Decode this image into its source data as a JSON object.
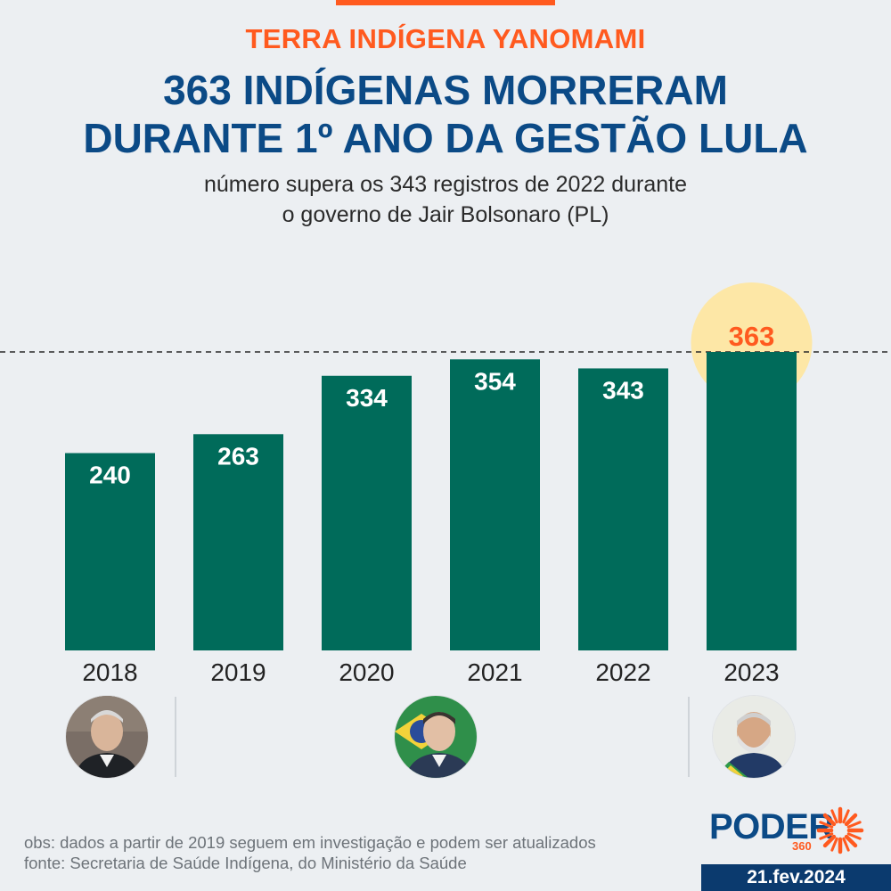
{
  "kicker": "TERRA INDÍGENA YANOMAMI",
  "headline_line1": "363 INDÍGENAS MORRERAM",
  "headline_line2": "DURANTE 1º ANO DA GESTÃO LULA",
  "subtitle_line1": "número supera os 343 registros de 2022 durante",
  "subtitle_line2": "o governo de Jair Bolsonaro (PL)",
  "colors": {
    "bar": "#006b5a",
    "accent": "#ff5a1f",
    "navy": "#0b4a86",
    "highlight": "#fde7a6"
  },
  "chart_data": {
    "type": "bar",
    "categories": [
      "2018",
      "2019",
      "2020",
      "2021",
      "2022",
      "2023"
    ],
    "values": [
      240,
      263,
      334,
      354,
      343,
      363
    ],
    "title": "363 INDÍGENAS MORRERAM DURANTE 1º ANO DA GESTÃO LULA",
    "xlabel": "",
    "ylabel": "",
    "ylim": [
      0,
      363
    ],
    "highlight_index": 5,
    "reference_line": 363,
    "grid": false,
    "legend": "none"
  },
  "presidents": [
    {
      "name": "temer-avatar",
      "icon": "president-portrait"
    },
    {
      "name": "bolsonaro-avatar",
      "icon": "president-portrait"
    },
    {
      "name": "lula-avatar",
      "icon": "president-portrait"
    }
  ],
  "notes": {
    "obs": "obs: dados a partir de 2019 seguem em investigação e podem ser atualizados",
    "fonte": "fonte: Secretaria de Saúde Indígena, do Ministério da Saúde"
  },
  "brand": {
    "word": "PODER",
    "number": "360"
  },
  "date": "21.fev.2024"
}
